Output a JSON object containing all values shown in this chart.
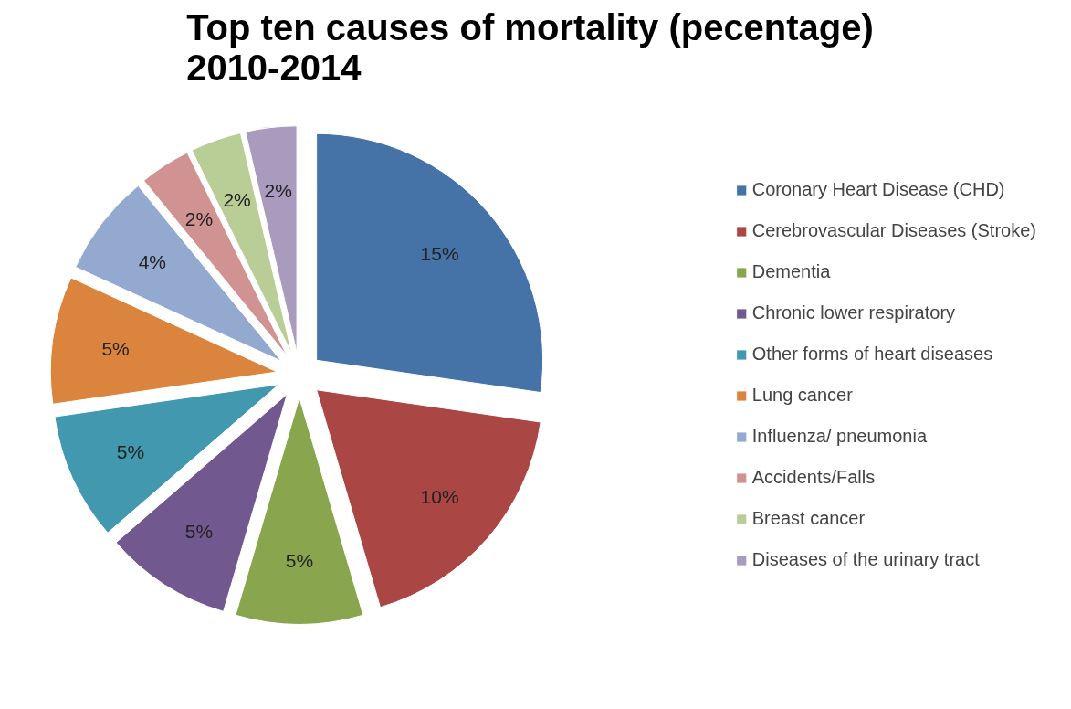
{
  "chart_data": {
    "type": "pie",
    "title": "Top ten causes of mortality (pecentage)\n2010-2014",
    "categories": [
      "Coronary Heart Disease (CHD)",
      "Cerebrovascular Diseases (Stroke)",
      "Dementia",
      "Chronic lower respiratory",
      "Other forms of heart diseases",
      "Lung cancer",
      "Influenza/ pneumonia",
      "Accidents/Falls",
      "Breast cancer",
      "Diseases of the urinary tract"
    ],
    "values": [
      15,
      10,
      5,
      5,
      5,
      5,
      4,
      2,
      2,
      2
    ],
    "value_labels": [
      "15%",
      "10%",
      "5%",
      "5%",
      "5%",
      "5%",
      "4%",
      "2%",
      "2%",
      "2%"
    ],
    "colors": [
      "#4572a7",
      "#aa4643",
      "#89a54e",
      "#71588f",
      "#4198af",
      "#db843d",
      "#93a9cf",
      "#d19392",
      "#b9cd96",
      "#a99bbd"
    ],
    "legend": "right"
  }
}
